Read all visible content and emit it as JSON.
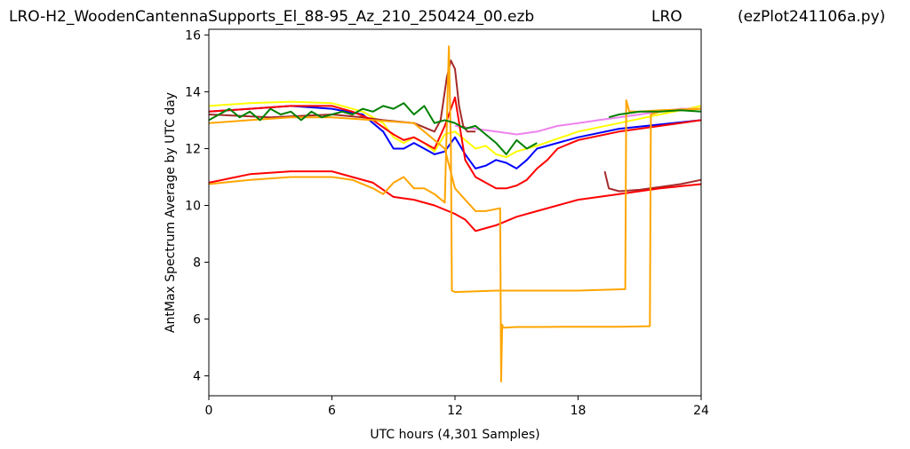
{
  "header": {
    "left": "LRO-H2_WoodenCantennaSupports_El_88-95_Az_210_250424_00.ezb",
    "center": "LRO",
    "right": "(ezPlot241106a.py)"
  },
  "chart_data": {
    "type": "line",
    "title": "",
    "xlabel": "UTC hours  (4,301 Samples)",
    "ylabel": "AntMax Spectrum Average by UTC day",
    "xlim": [
      0,
      24
    ],
    "ylim": [
      3.3,
      16.2
    ],
    "xticks": [
      0,
      6,
      12,
      18,
      24
    ],
    "yticks": [
      4,
      6,
      8,
      10,
      12,
      14,
      16
    ],
    "grid": false,
    "legend": "none",
    "series": [
      {
        "color": "#ffff00",
        "x": [
          0,
          2,
          4,
          6,
          7.5,
          8.5,
          9,
          9.5,
          10,
          10.5,
          11,
          11.5,
          12,
          12.5,
          13,
          13.5,
          14,
          14.5,
          15,
          16,
          18,
          20,
          22,
          24
        ],
        "y": [
          13.5,
          13.6,
          13.65,
          13.6,
          13.3,
          12.9,
          12.4,
          12.2,
          12.4,
          12.2,
          11.9,
          12.5,
          12.6,
          12.3,
          12.0,
          12.1,
          11.8,
          11.7,
          11.9,
          12.1,
          12.6,
          12.9,
          13.2,
          13.5
        ]
      },
      {
        "color": "#ee82ee",
        "x": [
          12,
          13,
          14,
          15,
          16,
          17,
          18,
          19,
          20,
          21,
          22,
          23,
          24
        ],
        "y": [
          12.8,
          12.7,
          12.6,
          12.5,
          12.6,
          12.8,
          12.9,
          13.0,
          13.1,
          13.2,
          13.3,
          13.4,
          13.4
        ]
      },
      {
        "color": "#0000ff",
        "x": [
          0,
          2,
          4,
          6,
          7.5,
          8.5,
          9,
          9.5,
          10,
          10.5,
          11,
          11.5,
          12,
          12.5,
          13,
          13.5,
          14,
          14.5,
          15,
          15.5,
          16,
          18,
          20,
          22,
          24
        ],
        "y": [
          13.3,
          13.4,
          13.5,
          13.4,
          13.2,
          12.6,
          12.0,
          12.0,
          12.2,
          12.0,
          11.8,
          11.9,
          12.4,
          11.8,
          11.3,
          11.4,
          11.6,
          11.5,
          11.3,
          11.6,
          12.0,
          12.4,
          12.7,
          12.85,
          13.0
        ]
      },
      {
        "color": "#a52a2a",
        "x": [
          0,
          3,
          6,
          7.5,
          8.5,
          10,
          11,
          11.3,
          11.6,
          11.8,
          12,
          12.2,
          12.4,
          12.6,
          13
        ],
        "y": [
          13.2,
          13.1,
          13.2,
          13.1,
          13.0,
          12.9,
          12.6,
          13.0,
          14.5,
          15.1,
          14.8,
          13.5,
          12.8,
          12.6,
          12.6
        ]
      },
      {
        "color": "#a52a2a",
        "x": [
          19.3,
          19.5,
          20,
          21,
          22,
          23,
          24
        ],
        "y": [
          11.2,
          10.6,
          10.5,
          10.55,
          10.65,
          10.75,
          10.9
        ]
      },
      {
        "color": "#ff0000",
        "x": [
          0,
          2,
          4,
          6,
          7,
          8,
          9,
          9.5,
          10,
          10.5,
          11,
          11.5,
          12,
          12.5,
          13,
          13.5,
          14,
          14.5,
          15,
          15.5,
          16,
          16.5,
          17,
          18,
          20,
          22,
          24
        ],
        "y": [
          13.3,
          13.4,
          13.5,
          13.5,
          13.3,
          13.0,
          12.5,
          12.3,
          12.4,
          12.2,
          12.0,
          12.8,
          13.8,
          11.6,
          11.0,
          10.8,
          10.6,
          10.6,
          10.7,
          10.9,
          11.3,
          11.6,
          12.0,
          12.3,
          12.6,
          12.8,
          13.0
        ]
      },
      {
        "color": "#ff0000",
        "x": [
          0,
          2,
          4,
          6,
          7,
          8,
          9,
          10,
          11,
          12,
          12.5,
          13,
          13.5,
          14,
          15,
          16,
          17,
          18,
          20,
          22,
          24
        ],
        "y": [
          10.8,
          11.1,
          11.2,
          11.2,
          11.0,
          10.8,
          10.3,
          10.2,
          10.0,
          9.7,
          9.5,
          9.1,
          9.2,
          9.3,
          9.6,
          9.8,
          10.0,
          10.2,
          10.4,
          10.6,
          10.75
        ]
      },
      {
        "color": "#ffa500",
        "x": [
          0,
          2,
          4,
          6,
          7,
          8,
          8.5,
          9,
          9.5,
          10,
          10.5,
          11,
          11.5,
          11.7,
          11.8,
          11.85,
          12,
          14,
          16,
          18,
          20.3,
          20.35,
          20.5,
          21,
          22,
          24
        ],
        "y": [
          10.75,
          10.9,
          11.0,
          11.0,
          10.9,
          10.6,
          10.4,
          10.8,
          11.0,
          10.6,
          10.6,
          10.4,
          10.1,
          15.6,
          12.0,
          7.0,
          6.95,
          7.0,
          7.0,
          7.0,
          7.05,
          13.7,
          13.3,
          13.3,
          13.35,
          13.4
        ]
      },
      {
        "color": "#ffa500",
        "x": [
          0,
          2,
          4,
          6,
          8,
          10,
          11.5,
          12,
          12.5,
          13,
          13.5,
          14.2,
          14.25,
          14.3,
          14.35,
          14.4,
          15,
          16,
          18,
          20,
          21.5,
          21.55,
          22,
          24
        ],
        "y": [
          12.9,
          13.0,
          13.1,
          13.1,
          13.0,
          12.9,
          12.0,
          10.6,
          10.2,
          9.8,
          9.8,
          9.9,
          3.8,
          5.8,
          5.7,
          5.7,
          5.72,
          5.72,
          5.73,
          5.73,
          5.75,
          13.2,
          13.3,
          13.4
        ]
      },
      {
        "color": "#008000",
        "x": [
          0,
          0.5,
          1,
          1.5,
          2,
          2.5,
          3,
          3.5,
          4,
          4.5,
          5,
          5.5,
          6,
          6.5,
          7,
          7.5,
          8,
          8.5,
          9,
          9.5,
          10,
          10.5,
          11,
          11.5,
          12,
          12.5,
          13,
          13.5,
          14,
          14.5,
          15,
          15.5,
          16
        ],
        "y": [
          13.0,
          13.2,
          13.4,
          13.1,
          13.3,
          13.0,
          13.4,
          13.2,
          13.3,
          13.0,
          13.3,
          13.1,
          13.2,
          13.3,
          13.2,
          13.4,
          13.3,
          13.5,
          13.4,
          13.6,
          13.2,
          13.5,
          12.9,
          13.0,
          12.9,
          12.7,
          12.8,
          12.5,
          12.2,
          11.8,
          12.3,
          12.0,
          12.2
        ]
      },
      {
        "color": "#008000",
        "x": [
          19.5,
          20,
          21,
          22,
          23,
          24
        ],
        "y": [
          13.1,
          13.2,
          13.3,
          13.3,
          13.35,
          13.3
        ]
      }
    ]
  }
}
